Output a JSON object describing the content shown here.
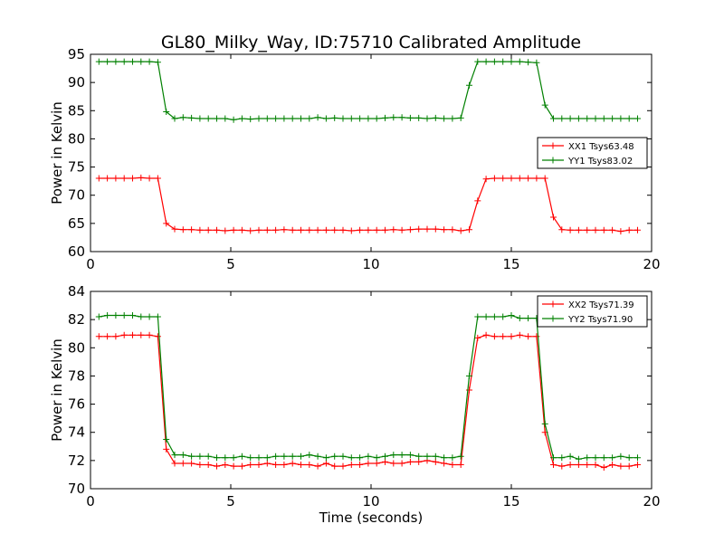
{
  "title": "GL80_Milky_Way, ID:75710 Calibrated Amplitude",
  "chart_data": [
    {
      "type": "line",
      "xlabel": "",
      "ylabel": "Power in Kelvin",
      "xlim": [
        0,
        20
      ],
      "ylim": [
        60,
        95
      ],
      "xticks": [
        0,
        5,
        10,
        15,
        20
      ],
      "yticks": [
        60,
        65,
        70,
        75,
        80,
        85,
        90,
        95
      ],
      "grid": false,
      "legend": "right",
      "x": [
        0.3,
        0.6,
        0.9,
        1.2,
        1.5,
        1.8,
        2.1,
        2.4,
        2.7,
        3.0,
        3.3,
        3.6,
        3.9,
        4.2,
        4.5,
        4.8,
        5.1,
        5.4,
        5.7,
        6.0,
        6.3,
        6.6,
        6.9,
        7.2,
        7.5,
        7.8,
        8.1,
        8.4,
        8.7,
        9.0,
        9.3,
        9.6,
        9.9,
        10.2,
        10.5,
        10.8,
        11.1,
        11.4,
        11.7,
        12.0,
        12.3,
        12.6,
        12.9,
        13.2,
        13.5,
        13.8,
        14.1,
        14.4,
        14.7,
        15.0,
        15.3,
        15.6,
        15.9,
        16.2,
        16.5,
        16.8,
        17.1,
        17.4,
        17.7,
        18.0,
        18.3,
        18.6,
        18.9,
        19.2,
        19.5
      ],
      "series": [
        {
          "name": "XX1 Tsys63.48",
          "color": "#ff0000",
          "values": [
            73.0,
            73.0,
            73.0,
            73.0,
            73.0,
            73.1,
            73.0,
            73.0,
            65.0,
            64.0,
            63.9,
            63.9,
            63.8,
            63.8,
            63.8,
            63.7,
            63.8,
            63.8,
            63.7,
            63.8,
            63.8,
            63.8,
            63.9,
            63.8,
            63.8,
            63.8,
            63.8,
            63.8,
            63.8,
            63.8,
            63.7,
            63.8,
            63.8,
            63.8,
            63.8,
            63.9,
            63.8,
            63.9,
            64.0,
            64.0,
            64.0,
            63.9,
            63.9,
            63.7,
            63.9,
            69.0,
            72.9,
            73.0,
            73.0,
            73.0,
            73.0,
            73.0,
            73.0,
            73.0,
            66.1,
            63.9,
            63.8,
            63.8,
            63.8,
            63.8,
            63.8,
            63.8,
            63.6,
            63.8,
            63.8
          ]
        },
        {
          "name": "YY1 Tsys83.02",
          "color": "#008000",
          "values": [
            93.7,
            93.7,
            93.7,
            93.7,
            93.7,
            93.7,
            93.7,
            93.6,
            84.8,
            83.6,
            83.8,
            83.7,
            83.6,
            83.6,
            83.6,
            83.6,
            83.4,
            83.6,
            83.5,
            83.6,
            83.6,
            83.6,
            83.6,
            83.6,
            83.6,
            83.6,
            83.8,
            83.6,
            83.7,
            83.6,
            83.6,
            83.6,
            83.6,
            83.6,
            83.7,
            83.8,
            83.8,
            83.7,
            83.7,
            83.6,
            83.7,
            83.6,
            83.6,
            83.7,
            89.5,
            93.7,
            93.7,
            93.7,
            93.7,
            93.7,
            93.7,
            93.6,
            93.5,
            86.0,
            83.6,
            83.6,
            83.6,
            83.6,
            83.6,
            83.6,
            83.6,
            83.6,
            83.6,
            83.6,
            83.6
          ]
        }
      ]
    },
    {
      "type": "line",
      "xlabel": "Time (seconds)",
      "ylabel": "Power in Kelvin",
      "xlim": [
        0,
        20
      ],
      "ylim": [
        70,
        84
      ],
      "xticks": [
        0,
        5,
        10,
        15,
        20
      ],
      "yticks": [
        70,
        72,
        74,
        76,
        78,
        80,
        82,
        84
      ],
      "grid": false,
      "legend": "top-right",
      "x": [
        0.3,
        0.6,
        0.9,
        1.2,
        1.5,
        1.8,
        2.1,
        2.4,
        2.7,
        3.0,
        3.3,
        3.6,
        3.9,
        4.2,
        4.5,
        4.8,
        5.1,
        5.4,
        5.7,
        6.0,
        6.3,
        6.6,
        6.9,
        7.2,
        7.5,
        7.8,
        8.1,
        8.4,
        8.7,
        9.0,
        9.3,
        9.6,
        9.9,
        10.2,
        10.5,
        10.8,
        11.1,
        11.4,
        11.7,
        12.0,
        12.3,
        12.6,
        12.9,
        13.2,
        13.5,
        13.8,
        14.1,
        14.4,
        14.7,
        15.0,
        15.3,
        15.6,
        15.9,
        16.2,
        16.5,
        16.8,
        17.1,
        17.4,
        17.7,
        18.0,
        18.3,
        18.6,
        18.9,
        19.2,
        19.5
      ],
      "series": [
        {
          "name": "XX2 Tsys71.39",
          "color": "#ff0000",
          "values": [
            80.8,
            80.8,
            80.8,
            80.9,
            80.9,
            80.9,
            80.9,
            80.8,
            72.8,
            71.8,
            71.8,
            71.8,
            71.7,
            71.7,
            71.6,
            71.7,
            71.6,
            71.6,
            71.7,
            71.7,
            71.8,
            71.7,
            71.7,
            71.8,
            71.7,
            71.7,
            71.6,
            71.8,
            71.6,
            71.6,
            71.7,
            71.7,
            71.8,
            71.8,
            71.9,
            71.8,
            71.8,
            71.9,
            71.9,
            72.0,
            71.9,
            71.8,
            71.7,
            71.7,
            77.0,
            80.7,
            80.9,
            80.8,
            80.8,
            80.8,
            80.9,
            80.8,
            80.8,
            74.0,
            71.7,
            71.6,
            71.7,
            71.7,
            71.7,
            71.7,
            71.5,
            71.7,
            71.6,
            71.6,
            71.7
          ]
        },
        {
          "name": "YY2 Tsys71.90",
          "color": "#008000",
          "values": [
            82.2,
            82.3,
            82.3,
            82.3,
            82.3,
            82.2,
            82.2,
            82.2,
            73.5,
            72.4,
            72.4,
            72.3,
            72.3,
            72.3,
            72.2,
            72.2,
            72.2,
            72.3,
            72.2,
            72.2,
            72.2,
            72.3,
            72.3,
            72.3,
            72.3,
            72.4,
            72.3,
            72.2,
            72.3,
            72.3,
            72.2,
            72.2,
            72.3,
            72.2,
            72.3,
            72.4,
            72.4,
            72.4,
            72.3,
            72.3,
            72.3,
            72.2,
            72.2,
            72.3,
            78.0,
            82.2,
            82.2,
            82.2,
            82.2,
            82.3,
            82.1,
            82.1,
            82.1,
            74.6,
            72.2,
            72.2,
            72.3,
            72.1,
            72.2,
            72.2,
            72.2,
            72.2,
            72.3,
            72.2,
            72.2
          ]
        }
      ]
    }
  ]
}
